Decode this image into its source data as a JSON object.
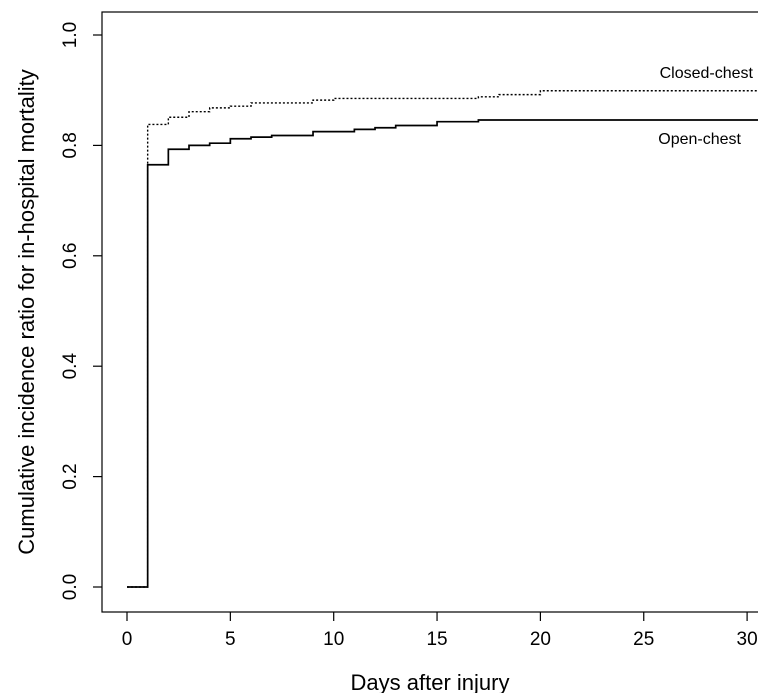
{
  "chart_data": {
    "type": "line",
    "title": "",
    "xlabel": "Days after injury",
    "ylabel": "Cumulative incidence ratio for in-hospital mortality",
    "xlim": [
      0,
      30
    ],
    "ylim": [
      0,
      1
    ],
    "x_ticks": [
      0,
      5,
      10,
      15,
      20,
      25,
      30
    ],
    "y_ticks": [
      0.0,
      0.2,
      0.4,
      0.6,
      0.8,
      1.0
    ],
    "x_tick_labels": [
      "0",
      "5",
      "10",
      "15",
      "20",
      "25",
      "30"
    ],
    "y_tick_labels": [
      "0.0",
      "0.2",
      "0.4",
      "0.6",
      "0.8",
      "1.0"
    ],
    "grid": false,
    "step": true,
    "series": [
      {
        "name": "Closed-chest",
        "line_style": "dotted",
        "color": "#000000",
        "x": [
          0,
          1,
          2,
          3,
          4,
          5,
          6,
          9,
          10,
          17,
          18,
          20,
          31
        ],
        "y": [
          0,
          0.838,
          0.851,
          0.861,
          0.868,
          0.871,
          0.877,
          0.882,
          0.885,
          0.888,
          0.892,
          0.899,
          0.899
        ]
      },
      {
        "name": "Open-chest",
        "line_style": "solid",
        "color": "#000000",
        "x": [
          0,
          1,
          2,
          3,
          4,
          5,
          6,
          7,
          9,
          11,
          12,
          13,
          15,
          17,
          31
        ],
        "y": [
          0,
          0.765,
          0.793,
          0.8,
          0.804,
          0.812,
          0.815,
          0.818,
          0.825,
          0.829,
          0.832,
          0.836,
          0.843,
          0.846,
          0.846
        ]
      }
    ]
  }
}
